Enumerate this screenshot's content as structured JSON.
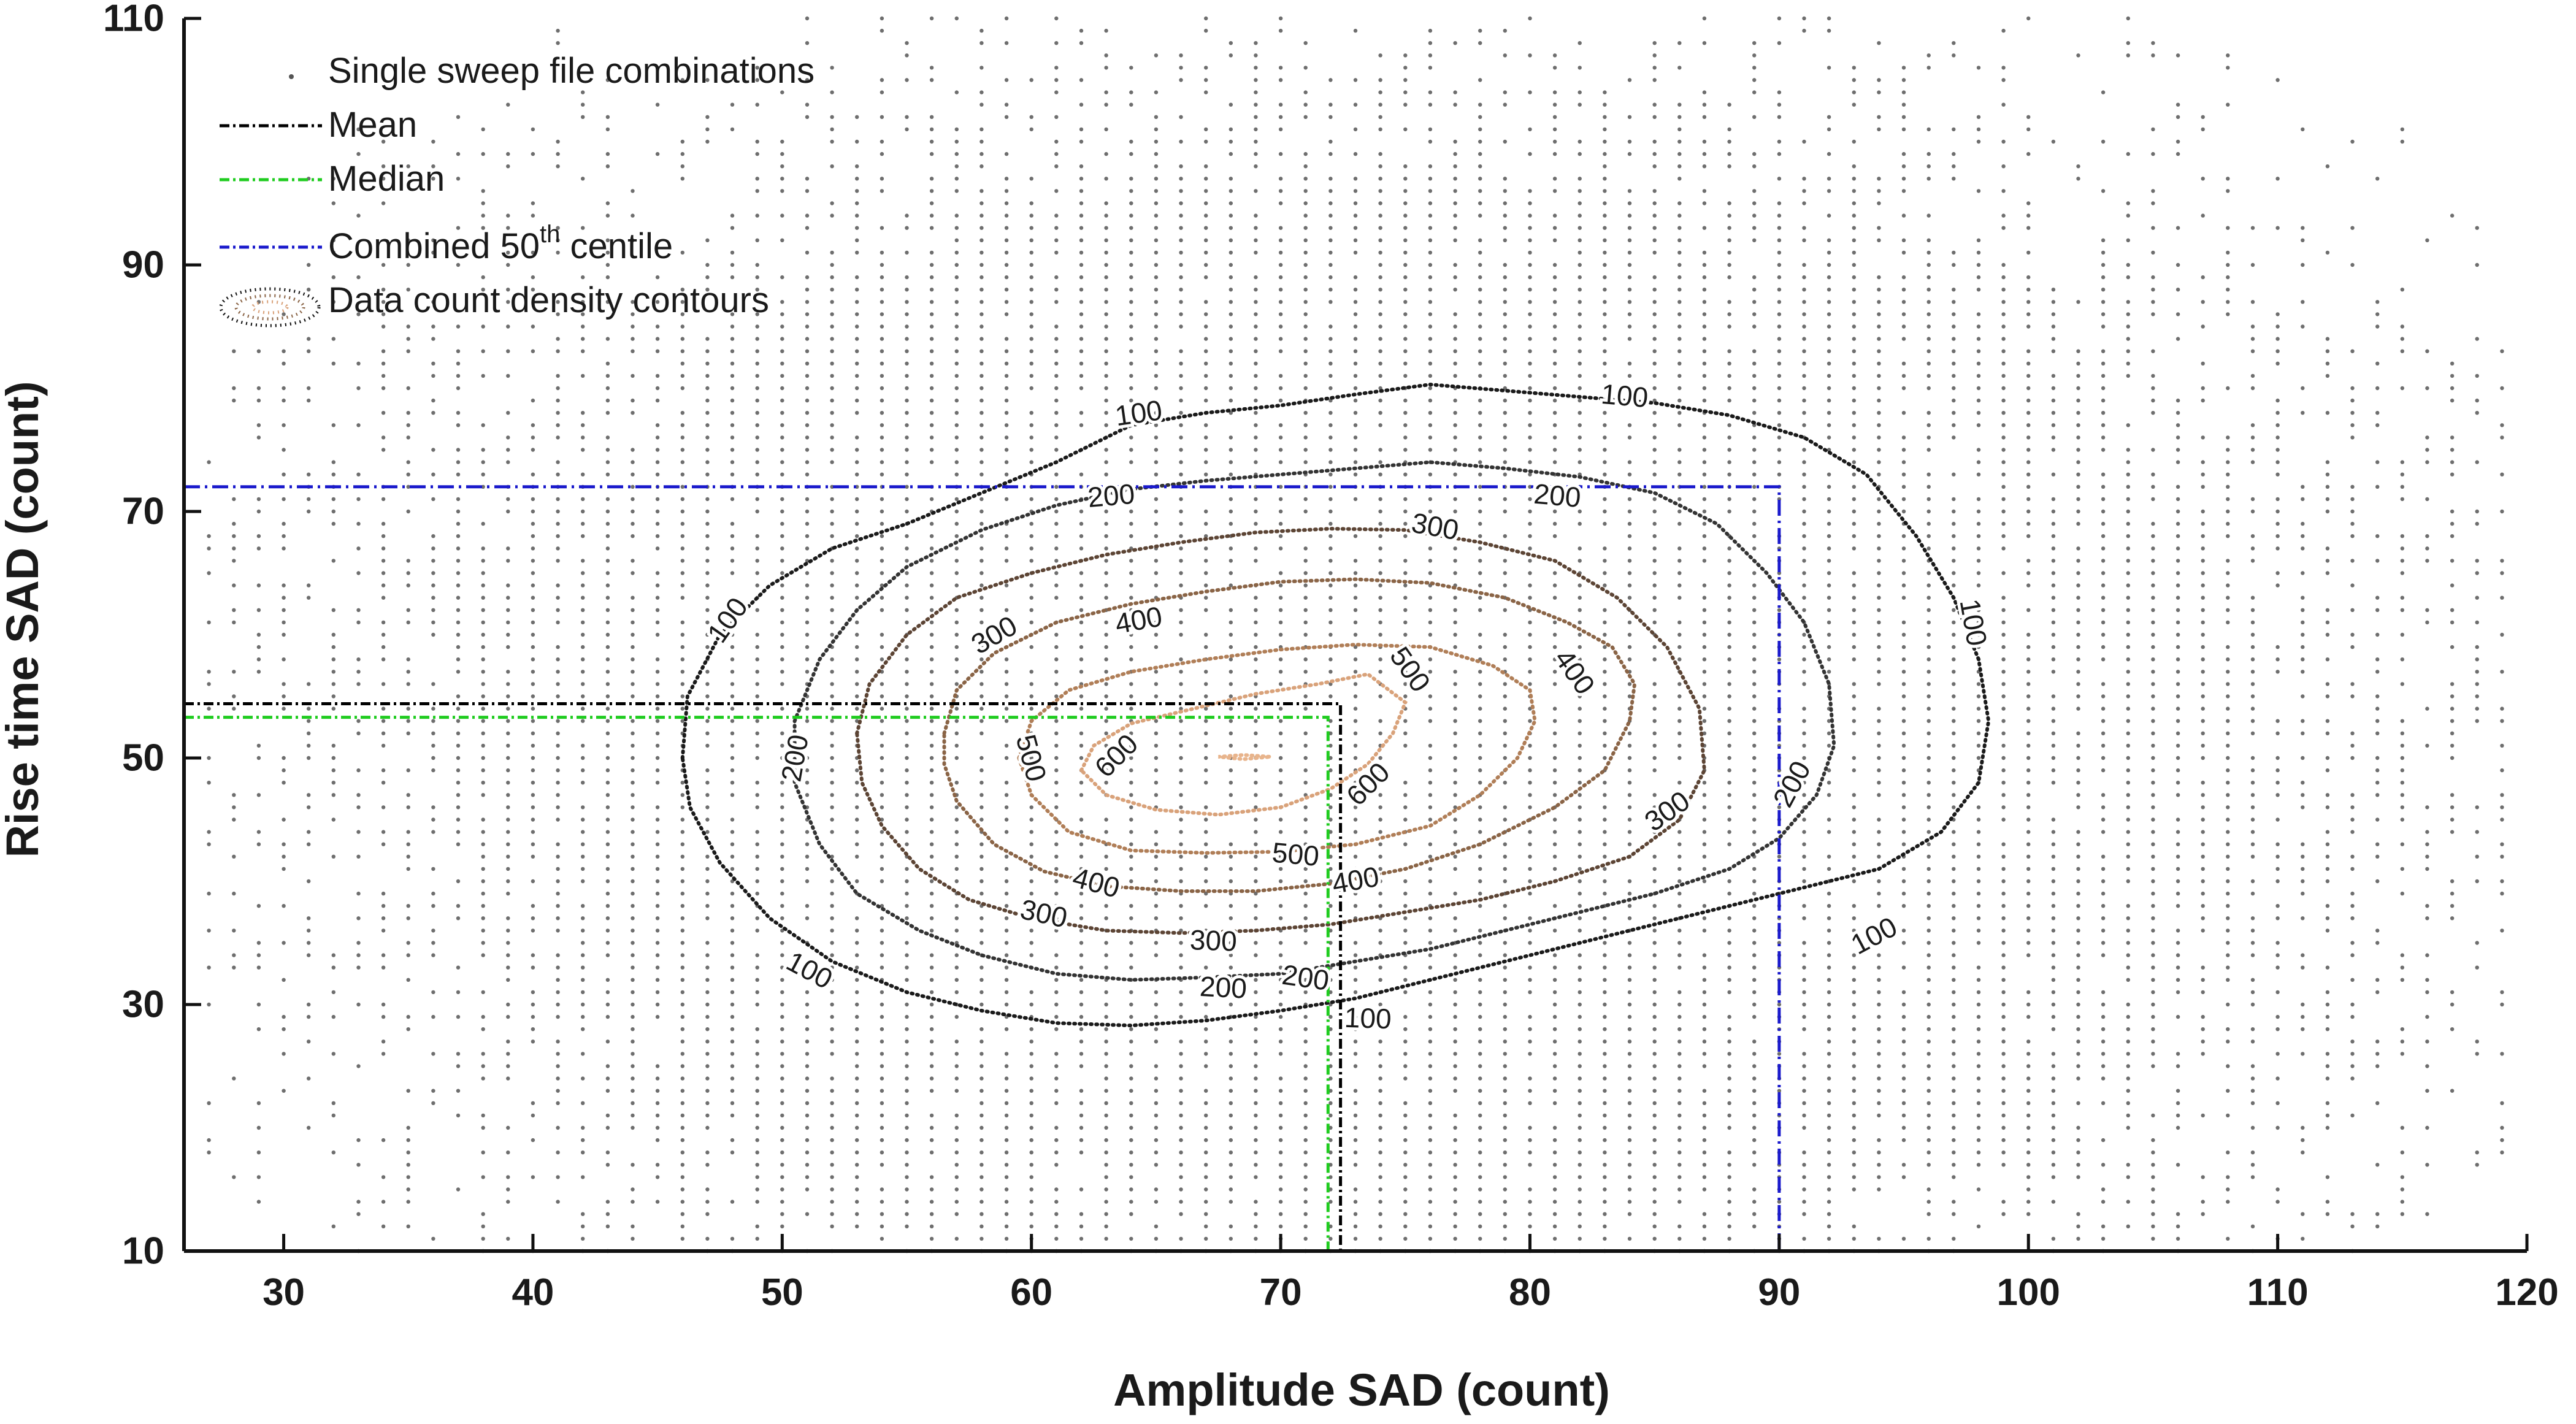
{
  "chart_data": {
    "type": "scatter",
    "xlabel": "Amplitude SAD (count)",
    "ylabel": "Rise time SAD (count)",
    "xlim": [
      26,
      120
    ],
    "ylim": [
      10,
      110
    ],
    "xticks": [
      30,
      40,
      50,
      60,
      70,
      80,
      90,
      100,
      110,
      120
    ],
    "yticks": [
      10,
      30,
      50,
      70,
      90,
      110
    ],
    "grid": false,
    "legend_position": "top-left",
    "legend": [
      {
        "key": "scatter",
        "label": "Single sweep file combinations",
        "suffix": ""
      },
      {
        "key": "mean",
        "label": "Mean",
        "suffix": ""
      },
      {
        "key": "median",
        "label": "Median",
        "suffix": ""
      },
      {
        "key": "centile",
        "label": "Combined 50",
        "sup": "th",
        "suffix": " centile"
      },
      {
        "key": "contours",
        "label": "Data count density contours",
        "suffix": ""
      }
    ],
    "reference_lines": {
      "mean": {
        "x": 72.4,
        "y": 54.4,
        "color": "#000000"
      },
      "median": {
        "x": 71.9,
        "y": 53.3,
        "color": "#1fcc1f"
      },
      "combined_50th_centile": {
        "x": 90,
        "y": 72,
        "color": "#1a1acc"
      }
    },
    "contours": [
      {
        "level": 100,
        "color": "#1a1a1a",
        "cx": 72,
        "cy": 53.5,
        "rx": 26,
        "ry": 26,
        "points": [
          [
            46.0,
            50
          ],
          [
            46.2,
            55
          ],
          [
            47.5,
            60
          ],
          [
            49.5,
            64
          ],
          [
            52,
            67
          ],
          [
            55,
            69
          ],
          [
            58,
            71.5
          ],
          [
            61,
            74
          ],
          [
            64,
            77
          ],
          [
            67,
            78
          ],
          [
            70,
            78.6
          ],
          [
            73,
            79.5
          ],
          [
            76,
            80.3
          ],
          [
            79,
            79.8
          ],
          [
            82,
            79.3
          ],
          [
            85,
            78.8
          ],
          [
            88,
            77.8
          ],
          [
            91,
            76
          ],
          [
            93.5,
            73
          ],
          [
            95.5,
            68
          ],
          [
            97,
            63
          ],
          [
            98,
            58
          ],
          [
            98.4,
            53
          ],
          [
            98,
            48
          ],
          [
            96.5,
            44
          ],
          [
            94,
            41
          ],
          [
            91,
            39.5
          ],
          [
            88,
            38
          ],
          [
            85,
            36.5
          ],
          [
            82,
            35
          ],
          [
            79,
            33.5
          ],
          [
            76,
            32
          ],
          [
            73,
            30.5
          ],
          [
            70,
            29.5
          ],
          [
            67,
            28.7
          ],
          [
            64,
            28.3
          ],
          [
            61,
            28.5
          ],
          [
            58,
            29.5
          ],
          [
            55,
            31
          ],
          [
            52,
            33.5
          ],
          [
            49.5,
            37
          ],
          [
            47.5,
            41.5
          ],
          [
            46.3,
            46
          ]
        ],
        "labels": [
          {
            "text": "100",
            "x": 64.3,
            "y": 78.0,
            "angle": -8
          },
          {
            "text": "100",
            "x": 83.8,
            "y": 79.4,
            "angle": 5
          },
          {
            "text": "100",
            "x": 97.8,
            "y": 61.0,
            "angle": 80
          },
          {
            "text": "100",
            "x": 93.8,
            "y": 35.6,
            "angle": -28
          },
          {
            "text": "100",
            "x": 73.5,
            "y": 28.9,
            "angle": 2
          },
          {
            "text": "100",
            "x": 51.1,
            "y": 32.8,
            "angle": 28
          },
          {
            "text": "100",
            "x": 47.8,
            "y": 61.2,
            "angle": -55
          }
        ]
      },
      {
        "level": 200,
        "color": "#333333",
        "cx": 72,
        "cy": 52.5,
        "rx": 21,
        "ry": 19,
        "points": [
          [
            50.5,
            53
          ],
          [
            51.5,
            58
          ],
          [
            53,
            62
          ],
          [
            55,
            65.5
          ],
          [
            58,
            68.5
          ],
          [
            61,
            70.5
          ],
          [
            64,
            71.8
          ],
          [
            67,
            72.5
          ],
          [
            70,
            73
          ],
          [
            73,
            73.5
          ],
          [
            76,
            74
          ],
          [
            79,
            73.5
          ],
          [
            82,
            72.8
          ],
          [
            85,
            71.5
          ],
          [
            87.5,
            69
          ],
          [
            89.5,
            65
          ],
          [
            91,
            61
          ],
          [
            92,
            56
          ],
          [
            92.2,
            51
          ],
          [
            91.5,
            47
          ],
          [
            90,
            43.5
          ],
          [
            88,
            41
          ],
          [
            85,
            39
          ],
          [
            82,
            37.5
          ],
          [
            79,
            36
          ],
          [
            76,
            34.5
          ],
          [
            73,
            33.5
          ],
          [
            70,
            32.5
          ],
          [
            67,
            32.2
          ],
          [
            64,
            32
          ],
          [
            61,
            32.5
          ],
          [
            58,
            34
          ],
          [
            55.5,
            36
          ],
          [
            53,
            39
          ],
          [
            51.5,
            43
          ],
          [
            50.5,
            48
          ]
        ],
        "labels": [
          {
            "text": "200",
            "x": 63.2,
            "y": 71.3,
            "angle": -5
          },
          {
            "text": "200",
            "x": 81.1,
            "y": 71.3,
            "angle": 5
          },
          {
            "text": "200",
            "x": 90.5,
            "y": 47.9,
            "angle": -62
          },
          {
            "text": "200",
            "x": 71.0,
            "y": 32.2,
            "angle": 8
          },
          {
            "text": "200",
            "x": 67.7,
            "y": 31.4,
            "angle": 3
          },
          {
            "text": "200",
            "x": 50.5,
            "y": 50.0,
            "angle": -80
          }
        ]
      },
      {
        "level": 300,
        "color": "#5c4434",
        "cx": 71,
        "cy": 51.5,
        "rx": 16,
        "ry": 14,
        "points": [
          [
            53,
            52
          ],
          [
            53.5,
            56
          ],
          [
            55,
            60
          ],
          [
            57,
            63
          ],
          [
            60,
            65
          ],
          [
            63,
            66.5
          ],
          [
            66,
            67.5
          ],
          [
            69,
            68.3
          ],
          [
            72,
            68.6
          ],
          [
            75,
            68.5
          ],
          [
            78,
            67.5
          ],
          [
            81,
            66
          ],
          [
            83.5,
            63
          ],
          [
            85.5,
            59
          ],
          [
            86.8,
            54
          ],
          [
            87,
            49
          ],
          [
            86,
            45
          ],
          [
            84,
            42
          ],
          [
            81,
            40
          ],
          [
            78,
            38.5
          ],
          [
            75,
            37.5
          ],
          [
            72,
            36.5
          ],
          [
            69,
            36
          ],
          [
            66,
            35.8
          ],
          [
            63,
            36
          ],
          [
            60,
            37
          ],
          [
            57.5,
            38.5
          ],
          [
            55.5,
            41
          ],
          [
            54,
            44.5
          ],
          [
            53.2,
            48
          ]
        ],
        "labels": [
          {
            "text": "300",
            "x": 58.5,
            "y": 60.0,
            "angle": -30
          },
          {
            "text": "300",
            "x": 76.2,
            "y": 68.8,
            "angle": 10
          },
          {
            "text": "300",
            "x": 85.5,
            "y": 45.7,
            "angle": -35
          },
          {
            "text": "300",
            "x": 67.3,
            "y": 35.2,
            "angle": 2
          },
          {
            "text": "300",
            "x": 60.5,
            "y": 37.4,
            "angle": 12
          }
        ]
      },
      {
        "level": 400,
        "color": "#8a6446",
        "cx": 71,
        "cy": 51.5,
        "rx": 12,
        "ry": 11,
        "points": [
          [
            56.5,
            52
          ],
          [
            57,
            55.5
          ],
          [
            58.5,
            58.5
          ],
          [
            61,
            61
          ],
          [
            64,
            62.5
          ],
          [
            67,
            63.5
          ],
          [
            70,
            64.3
          ],
          [
            73,
            64.5
          ],
          [
            76,
            64.2
          ],
          [
            79,
            63
          ],
          [
            81.5,
            61
          ],
          [
            83.3,
            59
          ],
          [
            84.2,
            56
          ],
          [
            84,
            53
          ],
          [
            83,
            49
          ],
          [
            81,
            46
          ],
          [
            78,
            43
          ],
          [
            75,
            41
          ],
          [
            72,
            39.8
          ],
          [
            69,
            39.2
          ],
          [
            66,
            39.2
          ],
          [
            63,
            39.6
          ],
          [
            60.5,
            40.8
          ],
          [
            58.5,
            43
          ],
          [
            57,
            46.5
          ],
          [
            56.5,
            49.5
          ]
        ],
        "labels": [
          {
            "text": "400",
            "x": 64.3,
            "y": 61.2,
            "angle": -10
          },
          {
            "text": "400",
            "x": 81.8,
            "y": 57.0,
            "angle": 55
          },
          {
            "text": "400",
            "x": 73.0,
            "y": 40.1,
            "angle": -10
          },
          {
            "text": "400",
            "x": 62.6,
            "y": 39.9,
            "angle": 15
          }
        ]
      },
      {
        "level": 500,
        "color": "#b07e57",
        "cx": 70,
        "cy": 50.5,
        "rx": 8.5,
        "ry": 7,
        "points": [
          [
            59.5,
            50
          ],
          [
            60,
            53
          ],
          [
            61.5,
            55.5
          ],
          [
            64,
            57
          ],
          [
            67,
            58
          ],
          [
            70,
            58.8
          ],
          [
            73,
            59.2
          ],
          [
            76,
            59
          ],
          [
            78.5,
            57.5
          ],
          [
            80,
            55.5
          ],
          [
            80.2,
            53
          ],
          [
            79.5,
            50
          ],
          [
            78,
            47
          ],
          [
            76,
            44.5
          ],
          [
            73,
            43
          ],
          [
            70,
            42.4
          ],
          [
            67,
            42.3
          ],
          [
            64,
            42.5
          ],
          [
            61.5,
            44
          ],
          [
            60,
            47
          ]
        ],
        "labels": [
          {
            "text": "500",
            "x": 75.2,
            "y": 57.2,
            "angle": 55
          },
          {
            "text": "500",
            "x": 60.0,
            "y": 50.0,
            "angle": 75
          },
          {
            "text": "500",
            "x": 70.6,
            "y": 42.2,
            "angle": 5
          }
        ]
      },
      {
        "level": 600,
        "color": "#d9a27a",
        "cx": 68.5,
        "cy": 49.5,
        "rx": 5.5,
        "ry": 4,
        "points": [
          [
            62,
            49
          ],
          [
            62.5,
            51
          ],
          [
            64,
            52.8
          ],
          [
            66.5,
            54
          ],
          [
            69,
            55.2
          ],
          [
            71.5,
            56
          ],
          [
            73.5,
            56.8
          ],
          [
            75,
            54.5
          ],
          [
            74.5,
            52
          ],
          [
            73.5,
            49.5
          ],
          [
            72,
            47.5
          ],
          [
            70,
            46
          ],
          [
            67.5,
            45.4
          ],
          [
            65,
            45.8
          ],
          [
            63,
            47
          ]
        ],
        "labels": [
          {
            "text": "600",
            "x": 63.4,
            "y": 50.2,
            "angle": -45
          },
          {
            "text": "600",
            "x": 73.5,
            "y": 47.9,
            "angle": -45
          }
        ]
      },
      {
        "level": 700,
        "color": "#e8b48c",
        "cx": 68.5,
        "cy": 50.0,
        "rx": 1.5,
        "ry": 0.3,
        "points": [
          [
            67.5,
            50.1
          ],
          [
            68.5,
            50.25
          ],
          [
            69.6,
            50.1
          ],
          [
            68.5,
            49.9
          ]
        ],
        "labels": []
      }
    ],
    "scatter_grid": {
      "x_step": 1,
      "y_step": 1,
      "x_range": [
        27,
        119
      ],
      "y_range": [
        10,
        110
      ]
    }
  }
}
